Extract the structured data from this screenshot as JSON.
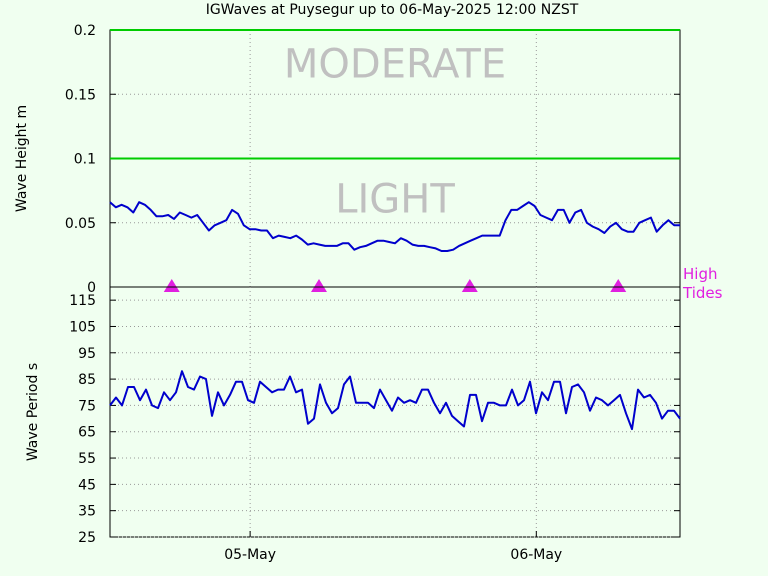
{
  "title": "IGWaves at Puysegur up to 06-May-2025 12:00 NZST",
  "colors": {
    "background": "#f0fff0",
    "line": "#0000cc",
    "threshold": "#00cc00",
    "tide": "#e020e0",
    "band_text": "#c0c0c0"
  },
  "chart_data": [
    {
      "type": "line",
      "ylabel": "Wave Height m",
      "ylim": [
        0,
        0.2
      ],
      "yticks": [
        0,
        0.05,
        0.1,
        0.15,
        0.2
      ],
      "ytick_labels": [
        "0",
        "0.05",
        "0.1",
        "0.15",
        "0.2"
      ],
      "x_range_hours": [
        0,
        48
      ],
      "grid": true,
      "thresholds": [
        0.1,
        0.2
      ],
      "bands": [
        {
          "label": "MODERATE",
          "y": 0.163
        },
        {
          "label": "LIGHT",
          "y": 0.058
        }
      ],
      "series": [
        {
          "values": [
            0.066,
            0.062,
            0.064,
            0.062,
            0.058,
            0.066,
            0.064,
            0.06,
            0.055,
            0.055,
            0.056,
            0.053,
            0.058,
            0.056,
            0.054,
            0.056,
            0.05,
            0.044,
            0.048,
            0.05,
            0.052,
            0.06,
            0.057,
            0.048,
            0.045,
            0.045,
            0.044,
            0.044,
            0.038,
            0.04,
            0.039,
            0.038,
            0.04,
            0.037,
            0.033,
            0.034,
            0.033,
            0.032,
            0.032,
            0.032,
            0.034,
            0.034,
            0.029,
            0.031,
            0.032,
            0.034,
            0.036,
            0.036,
            0.035,
            0.034,
            0.038,
            0.036,
            0.033,
            0.032,
            0.032,
            0.031,
            0.03,
            0.028,
            0.028,
            0.029,
            0.032,
            0.034,
            0.036,
            0.038,
            0.04,
            0.04,
            0.04,
            0.04,
            0.052,
            0.06,
            0.06,
            0.063,
            0.066,
            0.063,
            0.056,
            0.054,
            0.052,
            0.06,
            0.06,
            0.05,
            0.058,
            0.06,
            0.05,
            0.047,
            0.045,
            0.042,
            0.047,
            0.05,
            0.045,
            0.043,
            0.043,
            0.05,
            0.052,
            0.054,
            0.043,
            0.048,
            0.052,
            0.048,
            0.048
          ]
        }
      ],
      "tide_markers_hours": [
        5.2,
        17.6,
        30.3,
        42.8
      ]
    },
    {
      "type": "line",
      "ylabel": "Wave Period s",
      "ylim": [
        25,
        120
      ],
      "yticks": [
        25,
        35,
        45,
        55,
        65,
        75,
        85,
        95,
        105,
        115
      ],
      "ytick_labels": [
        "25",
        "35",
        "45",
        "55",
        "65",
        "75",
        "85",
        "95",
        "105",
        "115"
      ],
      "x_range_hours": [
        0,
        48
      ],
      "grid": true,
      "x_tick_hours": [
        11.8,
        35.9
      ],
      "x_tick_labels": [
        "05-May",
        "06-May"
      ],
      "series": [
        {
          "values": [
            75,
            78,
            75,
            82,
            82,
            77,
            81,
            75,
            74,
            80,
            77,
            80,
            88,
            82,
            81,
            86,
            85,
            71,
            80,
            75,
            79,
            84,
            84,
            77,
            76,
            84,
            82,
            80,
            81,
            81,
            86,
            80,
            81,
            68,
            70,
            83,
            76,
            72,
            74,
            83,
            86,
            76,
            76,
            76,
            74,
            81,
            77,
            73,
            78,
            76,
            77,
            76,
            81,
            81,
            76,
            72,
            76,
            71,
            69,
            67,
            79,
            79,
            69,
            76,
            76,
            75,
            75,
            81,
            75,
            77,
            84,
            72,
            80,
            77,
            84,
            84,
            72,
            82,
            83,
            80,
            73,
            78,
            77,
            75,
            77,
            79,
            72,
            66,
            81,
            78,
            79,
            76,
            70,
            73,
            73,
            70
          ]
        }
      ]
    }
  ],
  "tide_label_lines": [
    "High",
    "Tides"
  ]
}
